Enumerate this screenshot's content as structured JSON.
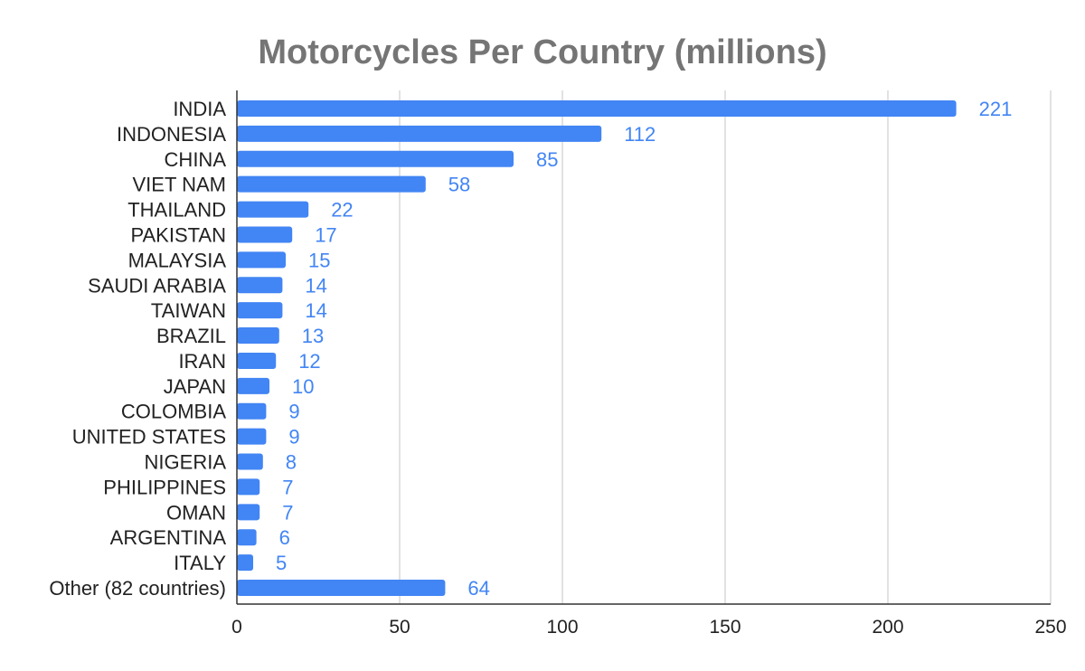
{
  "chart_data": {
    "type": "bar",
    "orientation": "horizontal",
    "title": "Motorcycles Per Country (millions)",
    "xlabel": "",
    "ylabel": "",
    "categories": [
      "INDIA",
      "INDONESIA",
      "CHINA",
      "VIET NAM",
      "THAILAND",
      "PAKISTAN",
      "MALAYSIA",
      "SAUDI ARABIA",
      "TAIWAN",
      "BRAZIL",
      "IRAN",
      "JAPAN",
      "COLOMBIA",
      "UNITED STATES",
      "NIGERIA",
      "PHILIPPINES",
      "OMAN",
      "ARGENTINA",
      "ITALY",
      "Other (82 countries)"
    ],
    "values": [
      221,
      112,
      85,
      58,
      22,
      17,
      15,
      14,
      14,
      13,
      12,
      10,
      9,
      9,
      8,
      7,
      7,
      6,
      5,
      64
    ],
    "data_labels": [
      "221",
      "112",
      "85",
      "58",
      "22",
      "17",
      "15",
      "14",
      "14",
      "13",
      "12",
      "10",
      "9",
      "9",
      "8",
      "7",
      "7",
      "6",
      "5",
      "64"
    ],
    "xlim": [
      0,
      250
    ],
    "x_ticks": [
      0,
      50,
      100,
      150,
      200,
      250
    ],
    "grid": true,
    "legend": "none",
    "bar_color": "#4285f4",
    "label_color": "#4285f4",
    "grid_color": "#c6c6c6"
  }
}
